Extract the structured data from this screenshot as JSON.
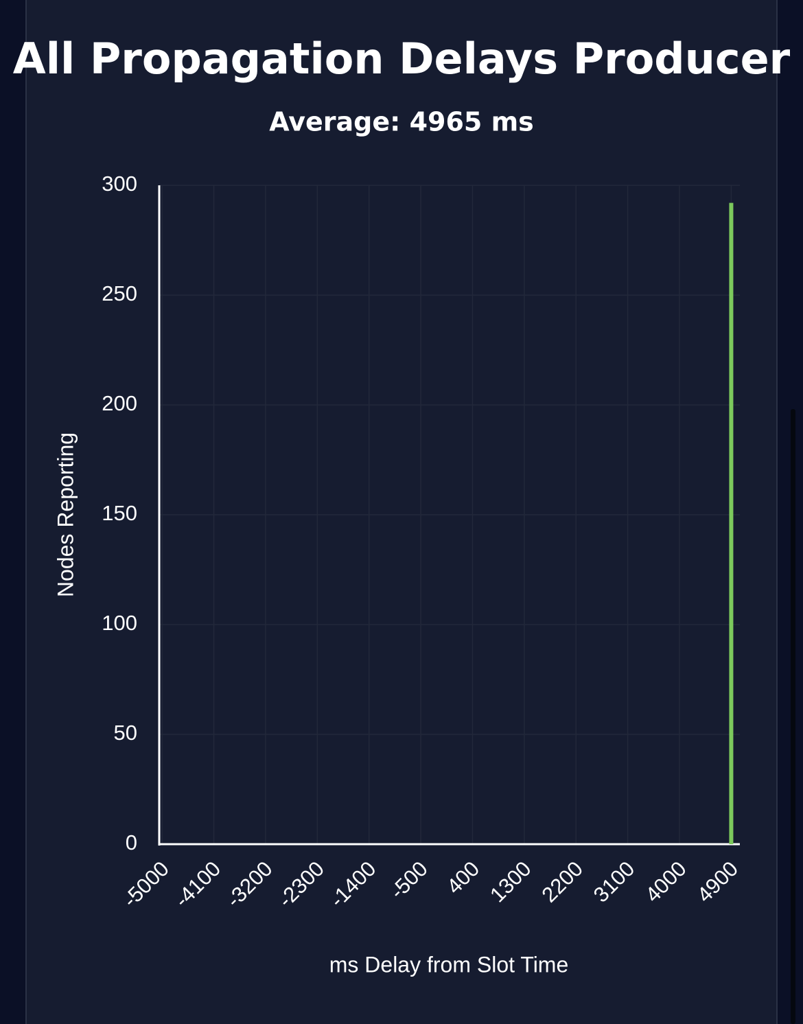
{
  "chart_data": {
    "type": "bar",
    "title": "All Propagation Delays Producer",
    "subtitle": "Average: 4965 ms",
    "x_label": "ms Delay from Slot Time",
    "y_label": "Nodes Reporting",
    "x": [
      4900
    ],
    "values": [
      292
    ],
    "color": "#7cc95c",
    "xlim": [
      -5050,
      5050
    ],
    "xticks": [
      -5000,
      -4100,
      -3200,
      -2300,
      -1400,
      -500,
      400,
      1300,
      2200,
      3100,
      4000,
      4900
    ],
    "ylim": [
      0,
      300
    ],
    "yticks": [
      0,
      50,
      100,
      150,
      200,
      250,
      300
    ],
    "grid": true
  }
}
